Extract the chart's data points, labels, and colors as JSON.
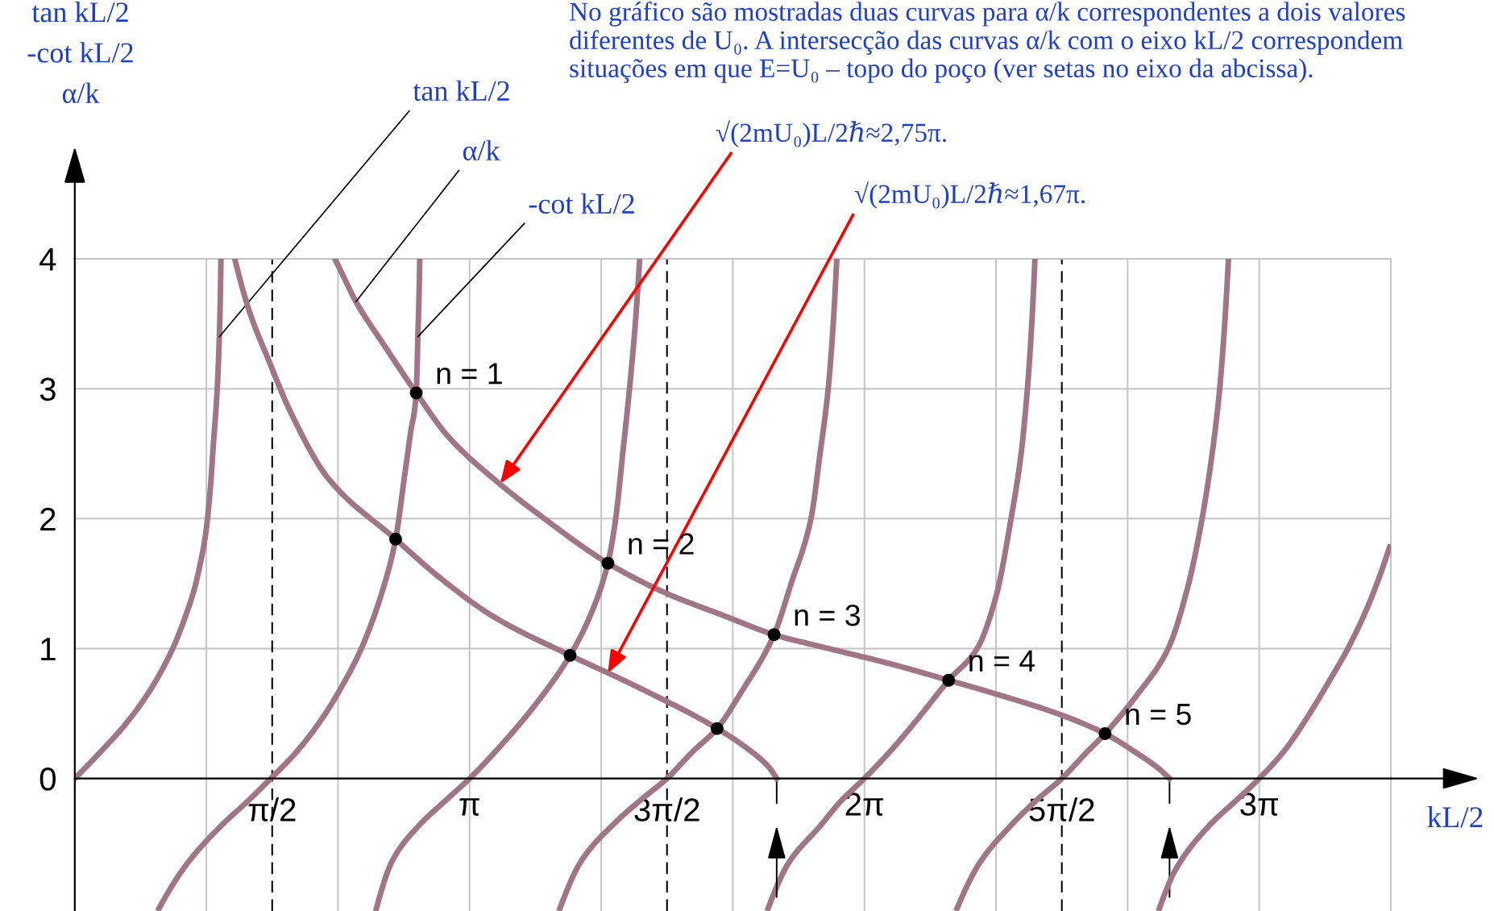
{
  "chart_data": {
    "type": "line",
    "title": "No gráfico são mostradas duas curvas para α/k correspondentes a dois valores diferentes de U₀. A intersecção das curvas α/k com o eixo kL/2 correspondem situações em que E=U₀ – topo do poço (ver setas no eixo da abcissa).",
    "xlabel": "kL/2",
    "ylabel": "tan kL/2\n-cot kL/2\nα/k",
    "xlim": [
      0,
      10.472
    ],
    "ylim": [
      -1.02,
      4
    ],
    "xticks": [
      {
        "value": 1.0472,
        "label": null
      },
      {
        "value": 2.0944,
        "label": null
      },
      {
        "value": 3.1416,
        "label": "π"
      },
      {
        "value": 4.1888,
        "label": null
      },
      {
        "value": 5.236,
        "label": null
      },
      {
        "value": 6.2832,
        "label": "2π"
      },
      {
        "value": 7.3304,
        "label": null
      },
      {
        "value": 8.3776,
        "label": null
      },
      {
        "value": 9.4248,
        "label": "3π"
      },
      {
        "value": 10.472,
        "label": null
      }
    ],
    "yticks": [
      0,
      1,
      2,
      3,
      4
    ],
    "grid": true,
    "ref_lines": [
      {
        "axis": "x",
        "value": 1.5708,
        "label": "π/2",
        "color": "#000000",
        "line_style": "dashed"
      },
      {
        "axis": "x",
        "value": 4.7124,
        "label": "3π/2",
        "color": "#000000",
        "line_style": "dashed"
      },
      {
        "axis": "x",
        "value": 7.854,
        "label": "5π/2",
        "color": "#000000",
        "line_style": "dashed"
      }
    ],
    "series": [
      {
        "name": "tan kL/2",
        "color": "#a07585",
        "x": [
          0,
          0.2,
          0.397,
          0.6,
          0.784,
          0.87,
          0.949,
          1.0,
          1.041,
          1.08,
          1.104,
          1.133,
          1.15,
          1.158,
          1.163
        ],
        "values": [
          0,
          0.2,
          0.41,
          0.68,
          1.01,
          1.22,
          1.45,
          1.66,
          1.88,
          2.25,
          2.59,
          2.99,
          3.4,
          3.7,
          4.0
        ]
      },
      {
        "name": "α/k",
        "color": "#a07585",
        "x": [
          2.07,
          2.15,
          2.237,
          2.458,
          2.717,
          2.973,
          3.378,
          3.709,
          4.242,
          4.696,
          5.174,
          5.564,
          6.0,
          6.5,
          6.953,
          7.4,
          7.846,
          8.198,
          8.458,
          8.62,
          8.711
        ],
        "values": [
          4.0,
          3.84,
          3.67,
          3.34,
          2.968,
          2.63,
          2.27,
          2.02,
          1.657,
          1.43,
          1.25,
          1.107,
          1.0,
          0.88,
          0.756,
          0.63,
          0.49,
          0.345,
          0.19,
          0.08,
          0
        ]
      },
      {
        "name": "-cot kL/2",
        "color": "#a07585",
        "x": [
          0.67,
          0.884,
          1.158,
          1.37,
          1.56,
          1.76,
          1.96,
          2.12,
          2.28,
          2.45,
          2.553,
          2.62,
          2.67,
          2.717,
          2.73,
          2.74,
          2.745
        ],
        "values": [
          -1.0,
          -0.668,
          -0.37,
          -0.18,
          0,
          0.2,
          0.45,
          0.7,
          1.0,
          1.45,
          1.842,
          2.3,
          2.65,
          2.968,
          3.4,
          3.75,
          4.0
        ]
      },
      {
        "color": "#a07585",
        "x": [
          2.4,
          2.526,
          2.731,
          2.95,
          3.142,
          3.34,
          3.65,
          3.941,
          4.1,
          4.242,
          4.304,
          4.36,
          4.414,
          4.46,
          4.495
        ],
        "values": [
          -1.0,
          -0.635,
          -0.37,
          -0.17,
          0,
          0.2,
          0.55,
          0.948,
          1.25,
          1.657,
          2.0,
          2.5,
          3.0,
          3.5,
          4.0
        ]
      },
      {
        "color": "#a07585",
        "x": [
          5.517,
          5.68,
          5.927,
          6.1,
          6.283,
          6.48,
          6.7,
          6.953,
          7.18,
          7.33,
          7.45,
          7.53,
          7.58,
          7.615,
          7.64
        ],
        "values": [
          -1.0,
          -0.65,
          -0.37,
          -0.17,
          0,
          0.2,
          0.45,
          0.756,
          1.0,
          1.4,
          2.0,
          2.5,
          3.0,
          3.5,
          4.0
        ]
      },
      {
        "color": "#a07585",
        "x": [
          8.63,
          8.76,
          9.02,
          9.24,
          9.425,
          9.63,
          9.826,
          10.0,
          10.13,
          10.3,
          10.462
        ],
        "values": [
          -1.0,
          -0.7,
          -0.37,
          -0.17,
          0,
          0.22,
          0.5,
          0.78,
          1.0,
          1.35,
          1.78
        ]
      },
      {
        "color": "#a07585",
        "x": [
          3.86,
          4.03,
          4.304,
          4.51,
          4.712,
          4.91,
          5.111,
          5.3,
          5.564,
          5.7,
          5.858,
          5.93,
          5.995,
          6.035,
          6.063
        ],
        "values": [
          -1.0,
          -0.635,
          -0.336,
          -0.16,
          0,
          0.2,
          0.385,
          0.66,
          1.107,
          1.5,
          2.0,
          2.5,
          3.0,
          3.5,
          4.0
        ]
      },
      {
        "color": "#a07585",
        "x": [
          7.02,
          7.2,
          7.45,
          7.65,
          7.854,
          8.05,
          8.198,
          8.45,
          8.7,
          8.85,
          8.97,
          9.05,
          9.11,
          9.15,
          9.18
        ],
        "values": [
          -1.0,
          -0.65,
          -0.36,
          -0.17,
          0,
          0.2,
          0.345,
          0.64,
          1.0,
          1.45,
          2.0,
          2.5,
          3.0,
          3.5,
          4.0
        ]
      },
      {
        "color": "#a07585",
        "x": [
          1.273,
          1.391,
          1.538,
          1.722,
          2.016,
          2.553,
          2.899,
          3.341,
          3.941,
          4.444,
          5.111,
          5.38,
          5.52,
          5.585
        ],
        "values": [
          4.0,
          3.59,
          3.23,
          2.81,
          2.31,
          1.842,
          1.55,
          1.24,
          0.948,
          0.72,
          0.385,
          0.21,
          0.09,
          0
        ]
      },
      {
        "type": "scatter",
        "color": "#000000",
        "marker": "circle",
        "x": [
          2.717,
          2.553,
          4.242,
          3.941,
          5.564,
          5.111,
          6.953,
          8.198
        ],
        "values": [
          2.968,
          1.842,
          1.657,
          0.948,
          1.107,
          0.385,
          0.756,
          0.345
        ]
      }
    ],
    "annotations": [
      {
        "text": "√(2mU₀)L/2ℏ≈2,75π.",
        "x": 3.385,
        "y": 2.27
      },
      {
        "text": "√(2mU₀)L/2ℏ≈1,67π.",
        "x": 4.241,
        "y": 0.81
      },
      {
        "text": "n = 1",
        "x": 2.717,
        "y": 2.968
      },
      {
        "text": "n = 2",
        "x": 4.242,
        "y": 1.657
      },
      {
        "text": "n = 3",
        "x": 5.564,
        "y": 1.107
      },
      {
        "text": "n = 4",
        "x": 6.953,
        "y": 0.756
      },
      {
        "text": "n = 5",
        "x": 8.198,
        "y": 0.345
      }
    ]
  }
}
